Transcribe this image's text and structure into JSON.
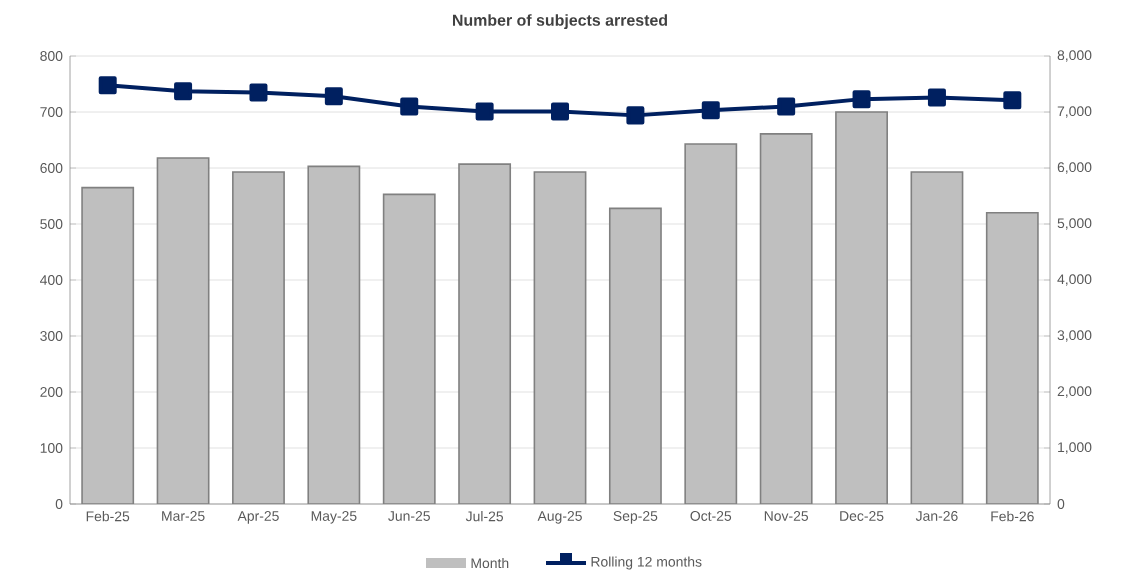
{
  "chart_data": {
    "type": "bar",
    "title": "Number of subjects arrested",
    "categories": [
      "Feb-25",
      "Mar-25",
      "Apr-25",
      "May-25",
      "Jun-25",
      "Jul-25",
      "Aug-25",
      "Sep-25",
      "Oct-25",
      "Nov-25",
      "Dec-25",
      "Jan-26",
      "Feb-26"
    ],
    "series": [
      {
        "name": "Month",
        "type": "bar",
        "color": "#bfbfbf",
        "values": [
          565,
          618,
          593,
          603,
          553,
          607,
          593,
          528,
          643,
          661,
          700,
          593,
          520
        ]
      },
      {
        "name": "Rolling 12 months",
        "type": "line",
        "axis": "y2",
        "color": "#002060",
        "marker": "square",
        "values": [
          7480,
          7370,
          7350,
          7280,
          7100,
          7010,
          7010,
          6940,
          7030,
          7100,
          7230,
          7260,
          7210
        ]
      }
    ],
    "ylim": [
      0,
      800
    ],
    "yticks": [
      0,
      100,
      200,
      300,
      400,
      500,
      600,
      700,
      800
    ],
    "y2lim": [
      0,
      8000
    ],
    "y2ticks": [
      0,
      {
        "value": 1000,
        "label": "1,000"
      },
      {
        "value": 2000,
        "label": "2,000"
      },
      {
        "value": 3000,
        "label": "3,000"
      },
      {
        "value": 4000,
        "label": "4,000"
      },
      {
        "value": 5000,
        "label": "5,000"
      },
      {
        "value": 6000,
        "label": "6,000"
      },
      {
        "value": 7000,
        "label": "7,000"
      },
      {
        "value": 8000,
        "label": "8,000"
      }
    ],
    "grid": "y",
    "legend": "bottom"
  }
}
